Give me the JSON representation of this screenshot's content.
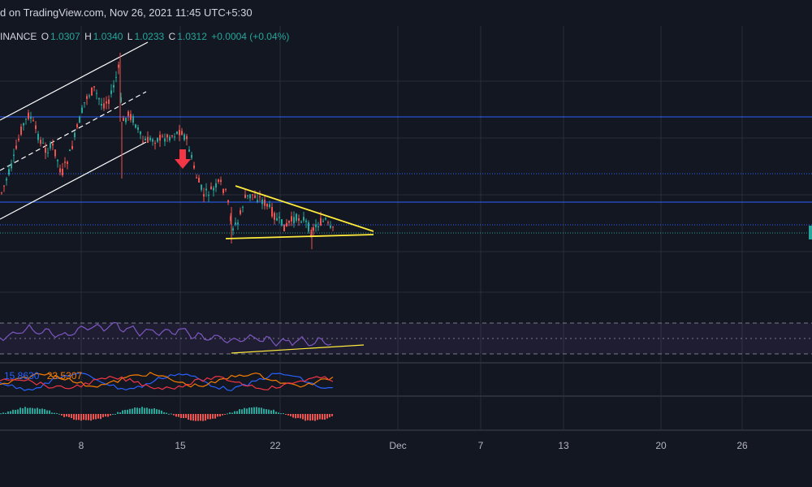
{
  "header": {
    "text": "d on TradingView.com, Nov 26, 2021 11:45 UTC+5:30"
  },
  "ohlc": {
    "symbol": "INANCE",
    "o_label": "O",
    "o": "1.0307",
    "h_label": "H",
    "h": "1.0340",
    "l_label": "L",
    "l": "1.0233",
    "c_label": "C",
    "c": "1.0312",
    "change": "+0.0004 (+0.04%)"
  },
  "indicator": {
    "value_a": "15.8630",
    "value_b": "23.5307"
  },
  "xaxis": {
    "labels": [
      "8",
      "15",
      "22",
      "Dec",
      "7",
      "13",
      "20",
      "26"
    ]
  },
  "colors": {
    "background": "#131722",
    "up": "#26a69a",
    "down": "#ef5350",
    "trendline": "#ffeb3b",
    "hline": "#2962ff",
    "rsi": "#7e57c2",
    "arrow": "#f23645"
  }
}
